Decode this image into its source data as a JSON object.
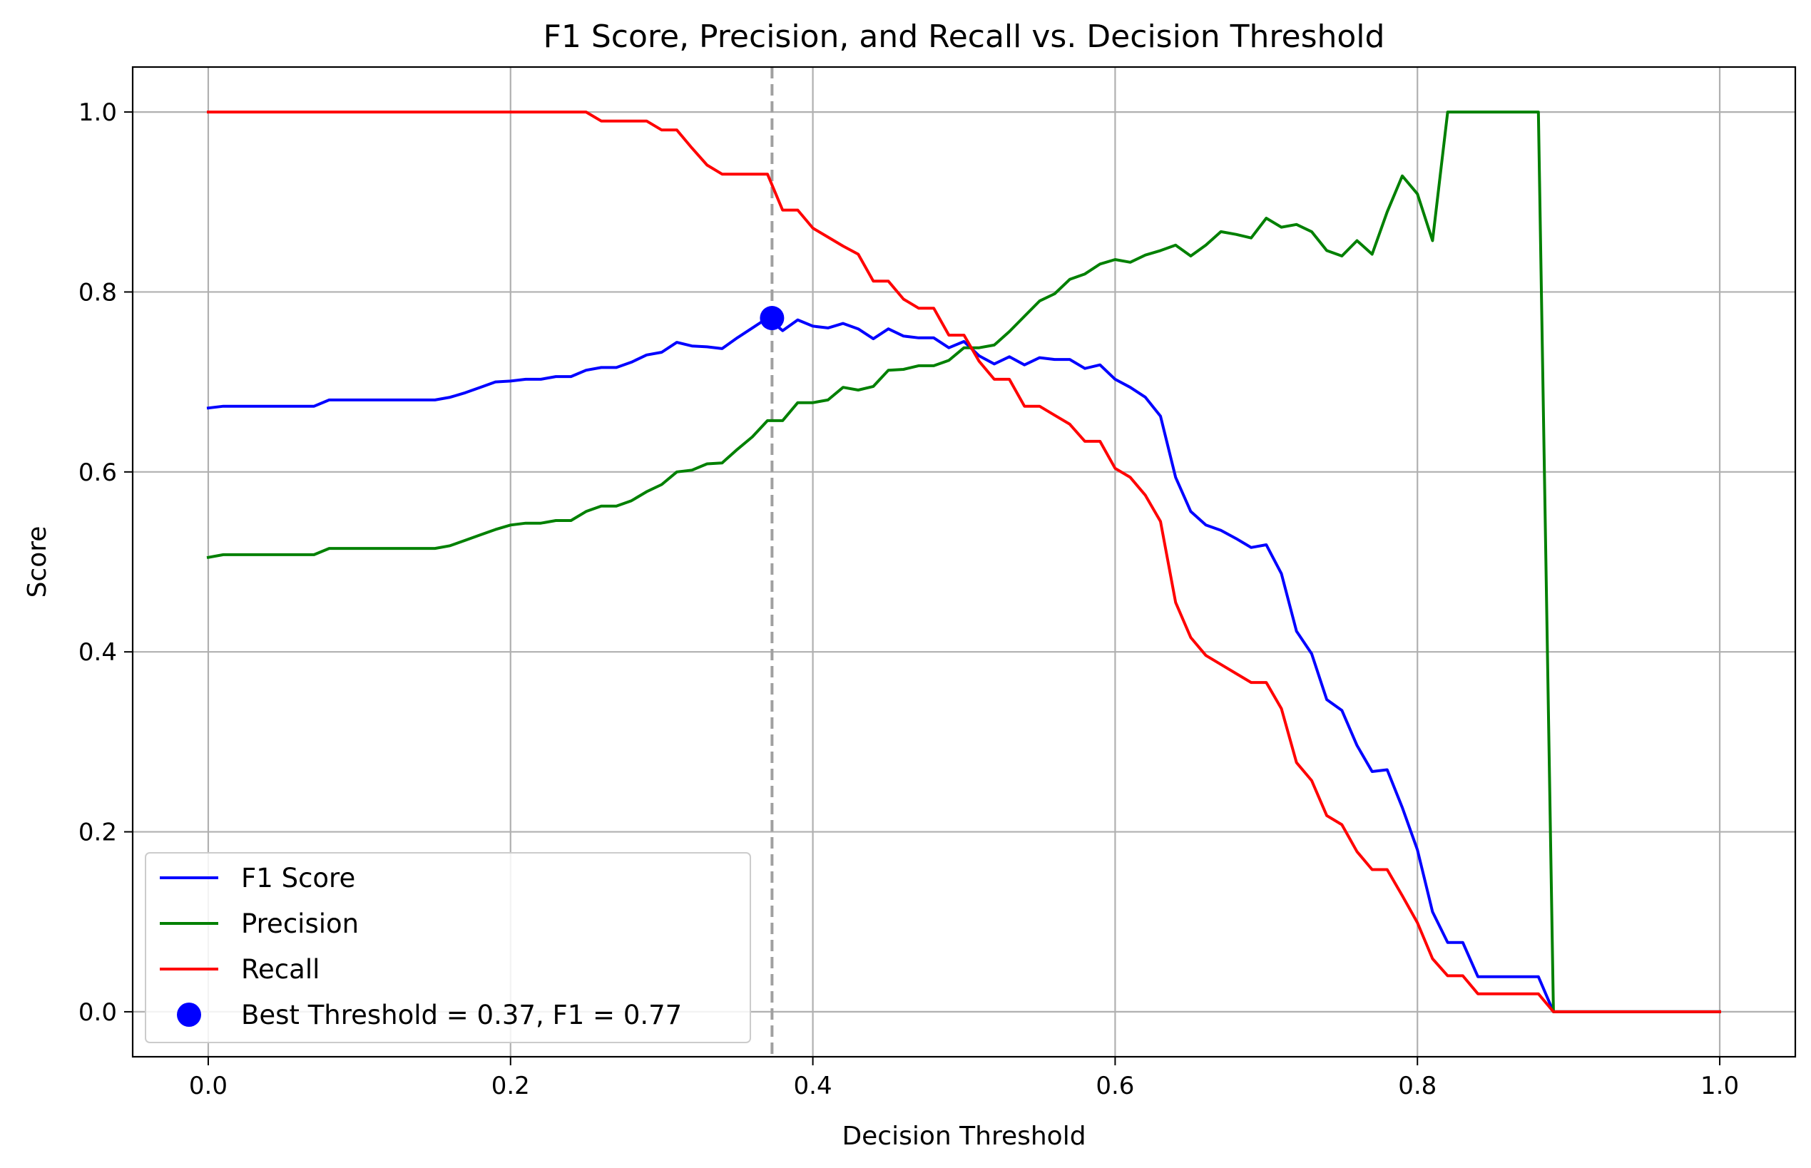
{
  "chart_data": {
    "type": "line",
    "title": "F1 Score, Precision, and Recall vs. Decision Threshold",
    "xlabel": "Decision Threshold",
    "ylabel": "Score",
    "xlim": [
      -0.05,
      1.05
    ],
    "ylim": [
      -0.05,
      1.05
    ],
    "x_ticks": [
      0.0,
      0.2,
      0.4,
      0.6,
      0.8,
      1.0
    ],
    "x_tick_labels": [
      "0.0",
      "0.2",
      "0.4",
      "0.6",
      "0.8",
      "1.0"
    ],
    "y_ticks": [
      0.0,
      0.2,
      0.4,
      0.6,
      0.8,
      1.0
    ],
    "y_tick_labels": [
      "0.0",
      "0.2",
      "0.4",
      "0.6",
      "0.8",
      "1.0"
    ],
    "grid": true,
    "legend_position": "lower-left",
    "x": [
      0.0,
      0.01,
      0.02,
      0.03,
      0.04,
      0.05,
      0.06,
      0.07,
      0.08,
      0.09,
      0.1,
      0.11,
      0.12,
      0.13,
      0.14,
      0.15,
      0.16,
      0.17,
      0.18,
      0.19,
      0.2,
      0.21,
      0.22,
      0.23,
      0.24,
      0.25,
      0.26,
      0.27,
      0.28,
      0.29,
      0.3,
      0.31,
      0.32,
      0.33,
      0.34,
      0.35,
      0.36,
      0.37,
      0.38,
      0.39,
      0.4,
      0.41,
      0.42,
      0.43,
      0.44,
      0.45,
      0.46,
      0.47,
      0.48,
      0.49,
      0.5,
      0.51,
      0.52,
      0.53,
      0.54,
      0.55,
      0.56,
      0.57,
      0.58,
      0.59,
      0.6,
      0.61,
      0.62,
      0.63,
      0.64,
      0.65,
      0.66,
      0.67,
      0.68,
      0.69,
      0.7,
      0.71,
      0.72,
      0.73,
      0.74,
      0.75,
      0.76,
      0.77,
      0.78,
      0.79,
      0.8,
      0.81,
      0.82,
      0.83,
      0.84,
      0.85,
      0.86,
      0.87,
      0.88,
      0.89,
      0.9,
      0.91,
      0.92,
      0.93,
      0.94,
      0.95,
      0.96,
      0.97,
      0.98,
      0.99,
      1.0
    ],
    "series": [
      {
        "name": "F1 Score",
        "color": "#0000ff",
        "values": [
          0.671,
          0.673,
          0.673,
          0.673,
          0.673,
          0.673,
          0.673,
          0.673,
          0.68,
          0.68,
          0.68,
          0.68,
          0.68,
          0.68,
          0.68,
          0.68,
          0.683,
          0.688,
          0.694,
          0.7,
          0.701,
          0.703,
          0.703,
          0.706,
          0.706,
          0.713,
          0.716,
          0.716,
          0.722,
          0.73,
          0.733,
          0.744,
          0.74,
          0.739,
          0.737,
          0.749,
          0.76,
          0.771,
          0.757,
          0.769,
          0.762,
          0.76,
          0.765,
          0.759,
          0.748,
          0.759,
          0.751,
          0.749,
          0.749,
          0.738,
          0.745,
          0.729,
          0.72,
          0.728,
          0.719,
          0.727,
          0.725,
          0.725,
          0.715,
          0.719,
          0.703,
          0.694,
          0.683,
          0.662,
          0.594,
          0.556,
          0.541,
          0.535,
          0.526,
          0.516,
          0.519,
          0.487,
          0.423,
          0.398,
          0.347,
          0.335,
          0.296,
          0.267,
          0.269,
          0.227,
          0.18,
          0.111,
          0.077,
          0.077,
          0.039,
          0.039,
          0.039,
          0.039,
          0.039,
          0.0,
          0.0,
          0.0,
          0.0,
          0.0,
          0.0,
          0.0,
          0.0,
          0.0,
          0.0,
          0.0,
          0.0
        ]
      },
      {
        "name": "Precision",
        "color": "#008000",
        "values": [
          0.505,
          0.508,
          0.508,
          0.508,
          0.508,
          0.508,
          0.508,
          0.508,
          0.515,
          0.515,
          0.515,
          0.515,
          0.515,
          0.515,
          0.515,
          0.515,
          0.518,
          0.524,
          0.53,
          0.536,
          0.541,
          0.543,
          0.543,
          0.546,
          0.546,
          0.556,
          0.562,
          0.562,
          0.568,
          0.578,
          0.586,
          0.6,
          0.602,
          0.609,
          0.61,
          0.625,
          0.639,
          0.657,
          0.657,
          0.677,
          0.677,
          0.68,
          0.694,
          0.691,
          0.695,
          0.713,
          0.714,
          0.718,
          0.718,
          0.724,
          0.738,
          0.738,
          0.741,
          0.756,
          0.773,
          0.79,
          0.798,
          0.814,
          0.82,
          0.831,
          0.836,
          0.833,
          0.841,
          0.846,
          0.852,
          0.84,
          0.852,
          0.867,
          0.864,
          0.86,
          0.882,
          0.872,
          0.875,
          0.867,
          0.846,
          0.84,
          0.857,
          0.842,
          0.889,
          0.929,
          0.909,
          0.857,
          1.0,
          1.0,
          1.0,
          1.0,
          1.0,
          1.0,
          1.0,
          0.0,
          0.0,
          0.0,
          0.0,
          0.0,
          0.0,
          0.0,
          0.0,
          0.0,
          0.0,
          0.0,
          0.0
        ]
      },
      {
        "name": "Recall",
        "color": "#ff0000",
        "values": [
          1.0,
          1.0,
          1.0,
          1.0,
          1.0,
          1.0,
          1.0,
          1.0,
          1.0,
          1.0,
          1.0,
          1.0,
          1.0,
          1.0,
          1.0,
          1.0,
          1.0,
          1.0,
          1.0,
          1.0,
          1.0,
          1.0,
          1.0,
          1.0,
          1.0,
          1.0,
          0.99,
          0.99,
          0.99,
          0.99,
          0.98,
          0.98,
          0.96,
          0.941,
          0.931,
          0.931,
          0.931,
          0.931,
          0.891,
          0.891,
          0.871,
          0.861,
          0.851,
          0.842,
          0.812,
          0.812,
          0.792,
          0.782,
          0.782,
          0.752,
          0.752,
          0.723,
          0.703,
          0.703,
          0.673,
          0.673,
          0.663,
          0.653,
          0.634,
          0.634,
          0.604,
          0.594,
          0.574,
          0.545,
          0.455,
          0.416,
          0.396,
          0.386,
          0.376,
          0.366,
          0.366,
          0.337,
          0.277,
          0.257,
          0.218,
          0.208,
          0.178,
          0.158,
          0.158,
          0.129,
          0.099,
          0.059,
          0.04,
          0.04,
          0.02,
          0.02,
          0.02,
          0.02,
          0.02,
          0.0,
          0.0,
          0.0,
          0.0,
          0.0,
          0.0,
          0.0,
          0.0,
          0.0,
          0.0,
          0.0,
          0.0
        ]
      }
    ],
    "best_point": {
      "label": "Best Threshold = 0.37, F1 = 0.77",
      "x": 0.373,
      "y": 0.771,
      "color": "#0000ff",
      "vline_color": "#a0a0a0"
    }
  }
}
